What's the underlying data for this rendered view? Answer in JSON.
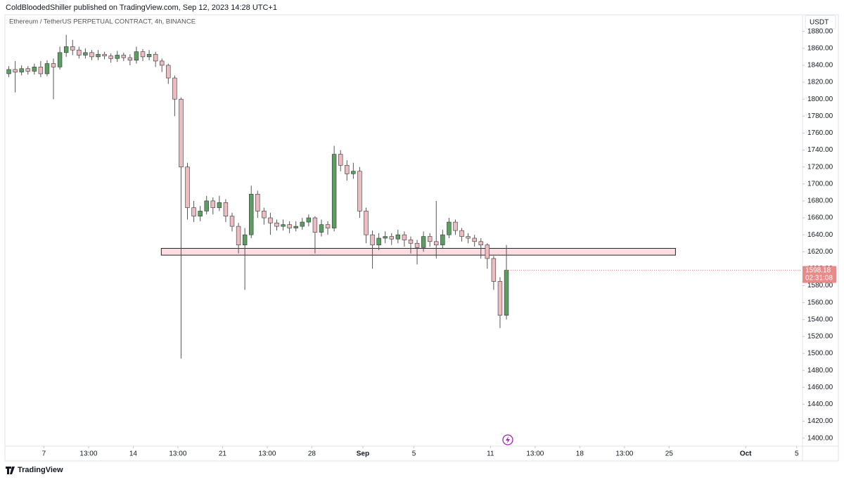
{
  "header": {
    "publisher_line": "ColdBloodedShiller published on TradingView.com, Sep 12, 2023 14:28 UTC+1"
  },
  "footer": {
    "brand": "TradingView"
  },
  "chart_data": {
    "type": "candlestick",
    "title": "Ethereum / TetherUS PERPETUAL CONTRACT, 4h, BINANCE",
    "currency": "USDT",
    "countdown": "02:31:08",
    "up_color": "#5c9e62",
    "down_color": "#ecbcc0",
    "x": [
      4.25,
      4.75,
      5.25,
      5.75,
      6.25,
      6.75,
      7.25,
      7.75,
      8.25,
      8.75,
      9.25,
      9.75,
      10.25,
      10.75,
      11.25,
      11.75,
      12.25,
      12.75,
      13.25,
      13.75,
      14.25,
      14.75,
      15.25,
      15.75,
      16.25,
      16.75,
      17.25,
      17.75,
      18.25,
      18.75,
      19.25,
      19.75,
      20.25,
      20.75,
      21.25,
      21.75,
      22.25,
      22.75,
      23.25,
      23.75,
      24.25,
      24.75,
      25.25,
      25.75,
      26.25,
      26.75,
      27.25,
      27.75,
      28.25,
      28.75,
      29.25,
      29.75,
      30.25,
      30.75,
      31.25,
      31.75,
      32.25,
      32.75,
      33.25,
      33.75,
      34.25,
      34.75,
      35.25,
      35.75,
      36.25,
      36.75,
      37.25,
      37.75,
      38.25,
      38.75,
      39.25,
      39.75,
      40.25,
      40.75,
      41.25,
      41.75,
      42.25,
      42.75,
      43.25
    ],
    "open": [
      1830,
      1835,
      1832,
      1836,
      1833,
      1838,
      1830,
      1842,
      1838,
      1855,
      1862,
      1858,
      1852,
      1855,
      1850,
      1853,
      1851,
      1848,
      1852,
      1849,
      1846,
      1856,
      1850,
      1853,
      1845,
      1840,
      1825,
      1800,
      1720,
      1672,
      1662,
      1668,
      1680,
      1672,
      1678,
      1662,
      1650,
      1628,
      1640,
      1688,
      1668,
      1660,
      1654,
      1650,
      1652,
      1648,
      1650,
      1655,
      1660,
      1643,
      1652,
      1648,
      1735,
      1722,
      1712,
      1715,
      1668,
      1640,
      1628,
      1636,
      1638,
      1635,
      1640,
      1634,
      1630,
      1625,
      1638,
      1632,
      1628,
      1640,
      1655,
      1645,
      1638,
      1636,
      1632,
      1628,
      1612,
      1585,
      1545
    ],
    "high": [
      1839,
      1845,
      1840,
      1839,
      1842,
      1845,
      1846,
      1848,
      1862,
      1876,
      1870,
      1862,
      1860,
      1858,
      1858,
      1856,
      1854,
      1857,
      1855,
      1853,
      1862,
      1859,
      1858,
      1856,
      1848,
      1842,
      1828,
      1802,
      1725,
      1680,
      1674,
      1686,
      1684,
      1686,
      1682,
      1666,
      1654,
      1648,
      1698,
      1692,
      1672,
      1666,
      1658,
      1658,
      1656,
      1656,
      1660,
      1664,
      1662,
      1658,
      1656,
      1745,
      1740,
      1728,
      1725,
      1720,
      1672,
      1645,
      1642,
      1644,
      1642,
      1646,
      1644,
      1638,
      1634,
      1644,
      1642,
      1680,
      1646,
      1660,
      1658,
      1648,
      1642,
      1640,
      1636,
      1630,
      1615,
      1590,
      1628
    ],
    "low": [
      1826,
      1808,
      1828,
      1829,
      1829,
      1826,
      1827,
      1800,
      1835,
      1850,
      1852,
      1848,
      1848,
      1846,
      1846,
      1847,
      1843,
      1844,
      1845,
      1840,
      1842,
      1845,
      1846,
      1838,
      1832,
      1818,
      1780,
      1494,
      1658,
      1655,
      1656,
      1664,
      1664,
      1668,
      1655,
      1644,
      1618,
      1575,
      1636,
      1660,
      1652,
      1640,
      1645,
      1645,
      1642,
      1644,
      1646,
      1650,
      1618,
      1638,
      1640,
      1644,
      1715,
      1704,
      1706,
      1660,
      1630,
      1600,
      1622,
      1630,
      1628,
      1630,
      1626,
      1618,
      1605,
      1620,
      1626,
      1612,
      1624,
      1636,
      1640,
      1632,
      1630,
      1626,
      1612,
      1600,
      1575,
      1530,
      1540
    ],
    "close": [
      1835,
      1832,
      1836,
      1833,
      1838,
      1830,
      1842,
      1838,
      1855,
      1862,
      1858,
      1852,
      1855,
      1850,
      1853,
      1851,
      1848,
      1852,
      1849,
      1846,
      1856,
      1850,
      1853,
      1845,
      1840,
      1825,
      1800,
      1720,
      1672,
      1662,
      1668,
      1680,
      1672,
      1678,
      1662,
      1650,
      1628,
      1640,
      1688,
      1668,
      1660,
      1654,
      1650,
      1652,
      1648,
      1650,
      1655,
      1660,
      1643,
      1652,
      1648,
      1735,
      1722,
      1712,
      1715,
      1668,
      1640,
      1628,
      1636,
      1638,
      1635,
      1640,
      1634,
      1630,
      1625,
      1638,
      1632,
      1628,
      1640,
      1655,
      1645,
      1638,
      1636,
      1632,
      1628,
      1612,
      1585,
      1545,
      1598.18
    ],
    "zone": {
      "low": 1616,
      "high": 1624,
      "start": 16.2,
      "end": 56.5,
      "color": "#fbdde3"
    },
    "xlim": [
      4,
      66.4
    ],
    "ylim": [
      1390.6,
      1898.8
    ],
    "xticks": [
      7,
      {
        "value": 10.5,
        "label": "13:00"
      },
      14,
      {
        "value": 17.5,
        "label": "13:00"
      },
      {
        "value": 21,
        "label": "21"
      },
      {
        "value": 24.5,
        "label": "13:00"
      },
      {
        "value": 28,
        "label": "28"
      },
      {
        "value": 32,
        "label": "Sep"
      },
      {
        "value": 36,
        "label": "5"
      },
      {
        "value": 42,
        "label": "11"
      },
      {
        "value": 45.5,
        "label": "13:00"
      },
      {
        "value": 49,
        "label": "18"
      },
      {
        "value": 52.5,
        "label": "13:00"
      },
      {
        "value": 56,
        "label": "25"
      },
      {
        "value": 62,
        "label": "Oct"
      },
      {
        "value": 66,
        "label": "5"
      }
    ],
    "yticks": [
      {
        "value": 1400,
        "label": "1400.00"
      },
      {
        "value": 1420,
        "label": "1420.00"
      },
      {
        "value": 1440,
        "label": "1440.00"
      },
      {
        "value": 1460,
        "label": "1460.00"
      },
      {
        "value": 1480,
        "label": "1480.00"
      },
      {
        "value": 1500,
        "label": "1500.00"
      },
      {
        "value": 1520,
        "label": "1520.00"
      },
      {
        "value": 1540,
        "label": "1540.00"
      },
      {
        "value": 1560,
        "label": "1560.00"
      },
      {
        "value": 1580,
        "label": "1580.00"
      },
      {
        "value": 1600,
        "label": "1600.00"
      },
      {
        "value": 1620,
        "label": "1620.00"
      },
      {
        "value": 1640,
        "label": "1640.00"
      },
      {
        "value": 1660,
        "label": "1660.00"
      },
      {
        "value": 1680,
        "label": "1680.00"
      },
      {
        "value": 1700,
        "label": "1700.00"
      },
      {
        "value": 1720,
        "label": "1720.00"
      },
      {
        "value": 1740,
        "label": "1740.00"
      },
      {
        "value": 1760,
        "label": "1760.00"
      },
      {
        "value": 1780,
        "label": "1780.00"
      },
      {
        "value": 1800,
        "label": "1800.00"
      },
      {
        "value": 1820,
        "label": "1820.00"
      },
      {
        "value": 1840,
        "label": "1840.00"
      },
      {
        "value": 1860,
        "label": "1860.00"
      },
      {
        "value": 1880,
        "label": "1880.00"
      }
    ]
  }
}
